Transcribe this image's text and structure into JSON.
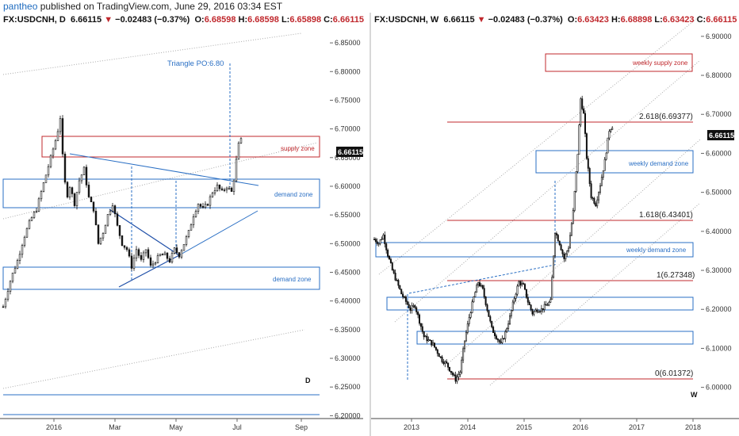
{
  "topbar": {
    "user": "pantheo",
    "text": " published on TradingView.com, June 29, 2016 03:34 EST"
  },
  "colors": {
    "supply": "#c0282d",
    "demand": "#2a6fc4",
    "candle_up": "#ffffff",
    "candle_down": "#111111",
    "trend": "#2a6fc4",
    "channel": "#999999"
  },
  "left": {
    "symbol": "FX:USDCNH, D",
    "last": "6.66115",
    "change": "−0.02483 (−0.37%)",
    "o_label": "O:",
    "o": "6.68598",
    "h_label": "H:",
    "h": "6.68598",
    "l_label": "L:",
    "l": "6.65898",
    "c_label": "C:",
    "c": "6.66115",
    "price_badge": "6.66115",
    "interval_mark": "D",
    "triangle_label": "Triangle PO:6.80",
    "zones": {
      "supply": "supply zone",
      "demand1": "demand zone",
      "demand2": "demand zone"
    }
  },
  "right": {
    "symbol": "FX:USDCNH, W",
    "last": "6.66115",
    "change": "−0.02483 (−0.37%)",
    "o_label": "O:",
    "o": "6.63423",
    "h_label": "H:",
    "h": "6.68898",
    "l_label": "L:",
    "l": "6.63423",
    "c_label": "C:",
    "c": "6.66115",
    "price_badge": "6.66115",
    "interval_mark": "W",
    "zones": {
      "supply": "weekly supply zone",
      "demand1": "weekly demand zone",
      "demand2": "weekly demand zone"
    },
    "fibs": [
      "2.618(6.69377)",
      "1.618(6.43401)",
      "1(6.27348)",
      "0(6.01372)"
    ]
  },
  "chart_data": [
    {
      "type": "candlestick",
      "title": "FX:USDCNH, D",
      "y_ticks": [
        "6.85000",
        "6.80000",
        "6.75000",
        "6.70000",
        "6.65000",
        "6.60000",
        "6.55000",
        "6.50000",
        "6.45000",
        "6.40000",
        "6.35000",
        "6.30000",
        "6.25000",
        "6.20000"
      ],
      "x_ticks": [
        "2016",
        "Mar",
        "May",
        "Jul",
        "Sep"
      ],
      "ylim": [
        6.195,
        6.875
      ],
      "key_levels": {
        "supply_zone": [
          6.653,
          6.687
        ],
        "demand_zone_1": [
          6.562,
          6.612
        ],
        "demand_zone_2": [
          6.418,
          6.458
        ],
        "triangle_target": 6.8,
        "last_price": 6.66115
      },
      "path": [
        [
          0,
          6.39
        ],
        [
          4,
          6.41
        ],
        [
          10,
          6.44
        ],
        [
          18,
          6.47
        ],
        [
          26,
          6.51
        ],
        [
          34,
          6.54
        ],
        [
          42,
          6.56
        ],
        [
          50,
          6.6
        ],
        [
          56,
          6.63
        ],
        [
          62,
          6.66
        ],
        [
          68,
          6.69
        ],
        [
          72,
          6.72
        ],
        [
          76,
          6.63
        ],
        [
          80,
          6.58
        ],
        [
          84,
          6.6
        ],
        [
          90,
          6.57
        ],
        [
          96,
          6.61
        ],
        [
          102,
          6.63
        ],
        [
          108,
          6.58
        ],
        [
          114,
          6.56
        ],
        [
          120,
          6.5
        ],
        [
          126,
          6.52
        ],
        [
          132,
          6.55
        ],
        [
          138,
          6.57
        ],
        [
          144,
          6.53
        ],
        [
          150,
          6.5
        ],
        [
          156,
          6.49
        ],
        [
          162,
          6.46
        ],
        [
          168,
          6.49
        ],
        [
          174,
          6.47
        ],
        [
          180,
          6.49
        ],
        [
          186,
          6.46
        ],
        [
          192,
          6.47
        ],
        [
          198,
          6.48
        ],
        [
          204,
          6.48
        ],
        [
          210,
          6.47
        ],
        [
          216,
          6.49
        ],
        [
          222,
          6.48
        ],
        [
          228,
          6.5
        ],
        [
          234,
          6.52
        ],
        [
          240,
          6.55
        ],
        [
          246,
          6.57
        ],
        [
          252,
          6.56
        ],
        [
          258,
          6.57
        ],
        [
          264,
          6.59
        ],
        [
          270,
          6.6
        ],
        [
          276,
          6.59
        ],
        [
          282,
          6.6
        ],
        [
          288,
          6.59
        ],
        [
          292,
          6.62
        ],
        [
          296,
          6.67
        ],
        [
          300,
          6.68
        ]
      ]
    },
    {
      "type": "candlestick",
      "title": "FX:USDCNH, W",
      "y_ticks": [
        "6.90000",
        "6.80000",
        "6.70000",
        "6.60000",
        "6.50000",
        "6.40000",
        "6.30000",
        "6.20000",
        "6.10000",
        "6.00000"
      ],
      "x_ticks": [
        "2013",
        "2014",
        "2015",
        "2016",
        "2017",
        "2018"
      ],
      "ylim": [
        5.92,
        6.92
      ],
      "fib_levels": [
        {
          "ratio": 2.618,
          "price": 6.69377
        },
        {
          "ratio": 1.618,
          "price": 6.43401
        },
        {
          "ratio": 1,
          "price": 6.27348
        },
        {
          "ratio": 0,
          "price": 6.01372
        }
      ],
      "zones": {
        "weekly_supply_zone": [
          6.83,
          6.87
        ],
        "weekly_demand_zone_1": [
          6.56,
          6.61
        ],
        "weekly_demand_zone_2": [
          6.35,
          6.38
        ],
        "zone_3": [
          6.2,
          6.23
        ],
        "zone_4": [
          6.105,
          6.14
        ]
      },
      "last_price": 6.66115,
      "path": [
        [
          0,
          6.38
        ],
        [
          6,
          6.37
        ],
        [
          12,
          6.39
        ],
        [
          18,
          6.34
        ],
        [
          24,
          6.3
        ],
        [
          30,
          6.27
        ],
        [
          36,
          6.24
        ],
        [
          42,
          6.22
        ],
        [
          48,
          6.2
        ],
        [
          54,
          6.21
        ],
        [
          60,
          6.17
        ],
        [
          66,
          6.13
        ],
        [
          72,
          6.12
        ],
        [
          78,
          6.11
        ],
        [
          84,
          6.09
        ],
        [
          90,
          6.07
        ],
        [
          96,
          6.06
        ],
        [
          102,
          6.04
        ],
        [
          108,
          6.02
        ],
        [
          114,
          6.04
        ],
        [
          120,
          6.12
        ],
        [
          126,
          6.18
        ],
        [
          132,
          6.23
        ],
        [
          138,
          6.27
        ],
        [
          144,
          6.25
        ],
        [
          150,
          6.2
        ],
        [
          156,
          6.15
        ],
        [
          162,
          6.13
        ],
        [
          168,
          6.11
        ],
        [
          174,
          6.14
        ],
        [
          180,
          6.18
        ],
        [
          186,
          6.23
        ],
        [
          192,
          6.27
        ],
        [
          198,
          6.26
        ],
        [
          204,
          6.22
        ],
        [
          210,
          6.19
        ],
        [
          216,
          6.2
        ],
        [
          222,
          6.2
        ],
        [
          228,
          6.21
        ],
        [
          234,
          6.22
        ],
        [
          240,
          6.4
        ],
        [
          246,
          6.37
        ],
        [
          252,
          6.33
        ],
        [
          258,
          6.36
        ],
        [
          264,
          6.45
        ],
        [
          270,
          6.6
        ],
        [
          274,
          6.74
        ],
        [
          278,
          6.7
        ],
        [
          282,
          6.59
        ],
        [
          288,
          6.49
        ],
        [
          294,
          6.47
        ],
        [
          300,
          6.52
        ],
        [
          306,
          6.58
        ],
        [
          312,
          6.66
        ],
        [
          316,
          6.67
        ]
      ]
    }
  ]
}
